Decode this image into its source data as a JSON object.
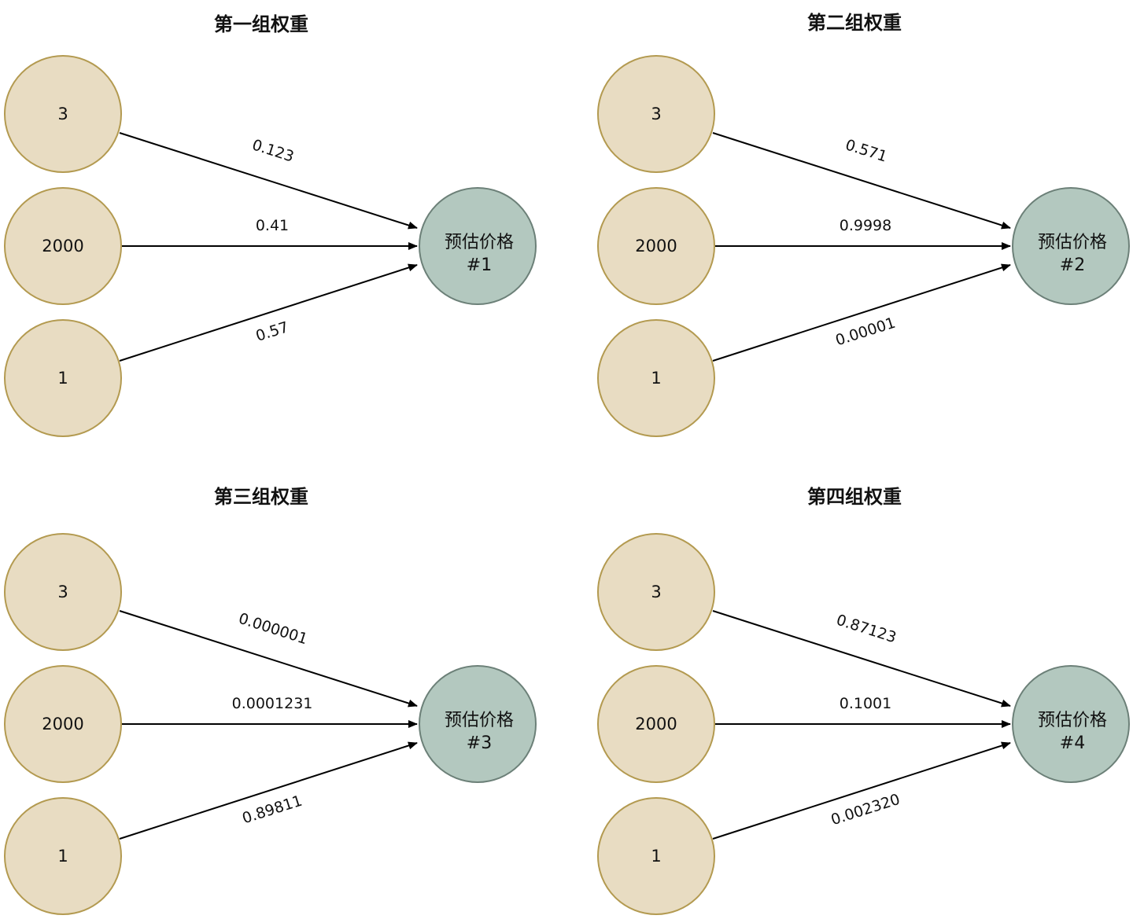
{
  "colors": {
    "input_fill": "#e8dcc2",
    "input_stroke": "#b39a50",
    "output_fill": "#b3c8bf",
    "output_stroke": "#6c8078",
    "edge": "#000000"
  },
  "panels": [
    {
      "title": "第一组权重",
      "inputs": [
        "3",
        "2000",
        "1"
      ],
      "weights": [
        "0.123",
        "0.41",
        "0.57"
      ],
      "output": {
        "line1": "预估价格",
        "line2": "#1"
      }
    },
    {
      "title": "第二组权重",
      "inputs": [
        "3",
        "2000",
        "1"
      ],
      "weights": [
        "0.571",
        "0.9998",
        "0.00001"
      ],
      "output": {
        "line1": "预估价格",
        "line2": "#2"
      }
    },
    {
      "title": "第三组权重",
      "inputs": [
        "3",
        "2000",
        "1"
      ],
      "weights": [
        "0.000001",
        "0.0001231",
        "0.89811"
      ],
      "output": {
        "line1": "预估价格",
        "line2": "#3"
      }
    },
    {
      "title": "第四组权重",
      "inputs": [
        "3",
        "2000",
        "1"
      ],
      "weights": [
        "0.87123",
        "0.1001",
        "0.002320"
      ],
      "output": {
        "line1": "预估价格",
        "line2": "#4"
      }
    }
  ]
}
